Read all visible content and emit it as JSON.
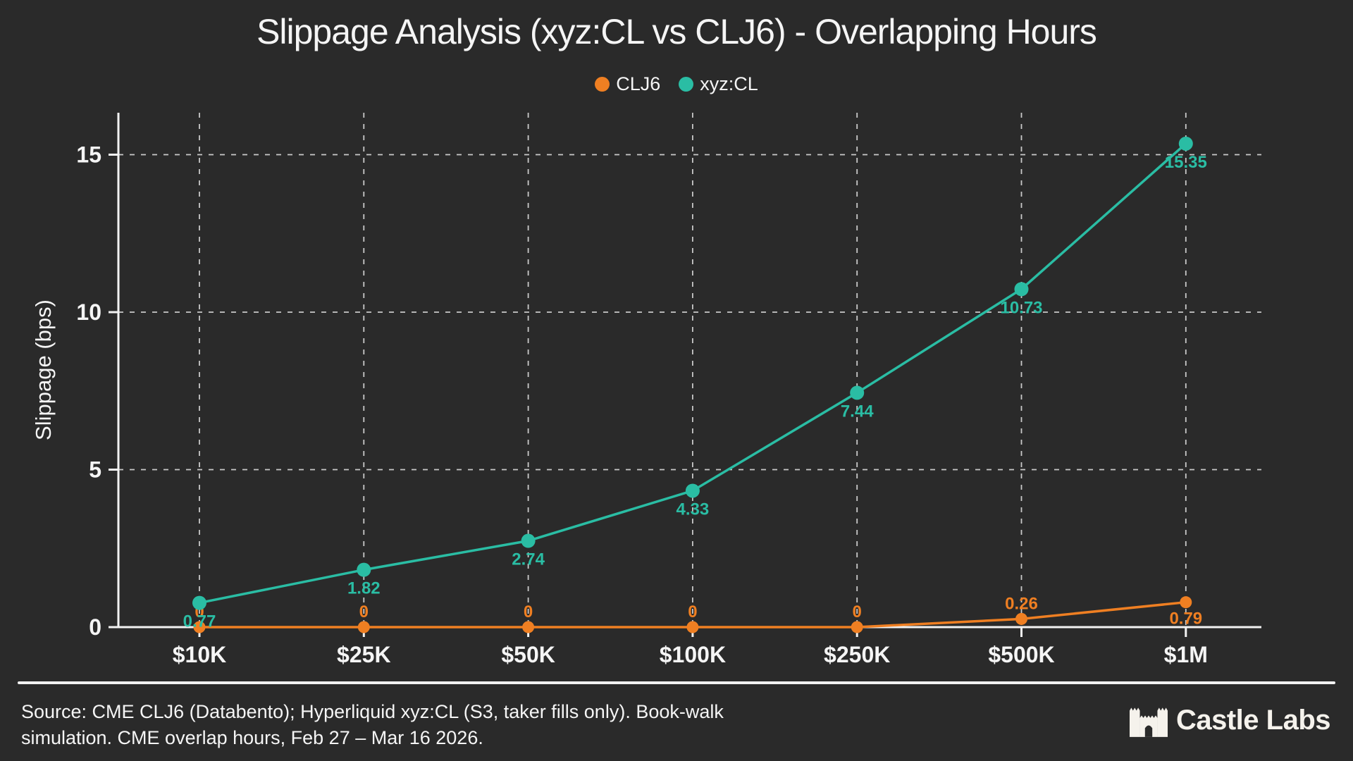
{
  "header": {
    "title": "Slippage Analysis (xyz:CL vs CLJ6) - Overlapping Hours"
  },
  "chart_data": {
    "type": "line",
    "title": "Slippage Analysis (xyz:CL vs CLJ6) - Overlapping Hours",
    "categories": [
      "$10K",
      "$25K",
      "$50K",
      "$100K",
      "$250K",
      "$500K",
      "$1M"
    ],
    "series": [
      {
        "name": "CLJ6",
        "color": "#ef7f22",
        "values": [
          0,
          0,
          0,
          0,
          0,
          0.26,
          0.79
        ],
        "labels": [
          "0",
          "0",
          "0",
          "0",
          "0",
          "0.26",
          "0.79"
        ]
      },
      {
        "name": "xyz:CL",
        "color": "#2abda4",
        "values": [
          0.77,
          1.82,
          2.74,
          4.33,
          7.44,
          10.73,
          15.35
        ],
        "labels": [
          "0.77",
          "1.82",
          "2.74",
          "4.33",
          "7.44",
          "10.73",
          "15.35"
        ]
      }
    ],
    "xlabel": "",
    "ylabel": "Slippage (bps)",
    "yticks": [
      0,
      5,
      10,
      15
    ],
    "ylim": [
      0,
      16.3
    ],
    "grid": "dashed",
    "legend_position": "top-center"
  },
  "footer": {
    "source_line1": "Source: CME CLJ6 (Databento); Hyperliquid xyz:CL (S3, taker fills only). Book-walk",
    "source_line2": "simulation. CME overlap hours, Feb 27 – Mar 16 2026.",
    "brand_name": "Castle Labs",
    "brand_icon": "castle-icon"
  },
  "colors": {
    "background": "#2a2a2a",
    "axis": "#f2f2f2",
    "gridline": "#c9c9c9",
    "text": "#f5f5f5",
    "brand_text": "#f5f2ec",
    "series_clj6": "#ef7f22",
    "series_xyzcl": "#2abda4"
  }
}
